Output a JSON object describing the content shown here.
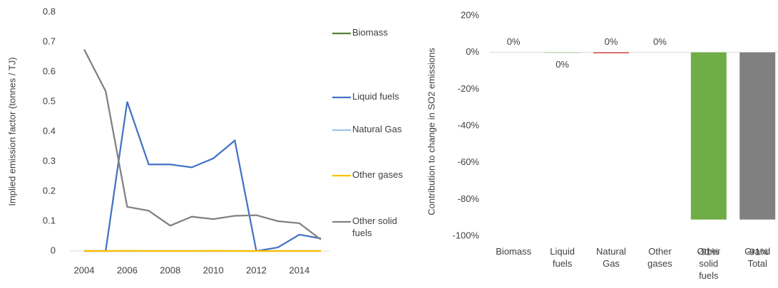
{
  "chart_data": [
    {
      "type": "line",
      "y_label": "Implied emission factor (tonnes / TJ)",
      "x": [
        2004,
        2005,
        2006,
        2007,
        2008,
        2009,
        2010,
        2011,
        2012,
        2013,
        2014,
        2015
      ],
      "xlim": [
        2004,
        2015
      ],
      "xticks": [
        2004,
        2006,
        2008,
        2010,
        2012,
        2014
      ],
      "ylim": [
        0,
        0.8
      ],
      "yticks": [
        0,
        0.1,
        0.2,
        0.3,
        0.4,
        0.5,
        0.6,
        0.7,
        0.8
      ],
      "grid": false,
      "legend": "right",
      "series": [
        {
          "name": "Biomass",
          "color": "#548235",
          "values": [
            0,
            0,
            0,
            0,
            0,
            0,
            0,
            0,
            0,
            0,
            0,
            0
          ]
        },
        {
          "name": "Liquid fuels",
          "color": "#4472c4",
          "values": [
            0,
            0,
            0.5,
            0.29,
            0.29,
            0.28,
            0.31,
            0.37,
            0,
            0.012,
            0.055,
            0.042
          ]
        },
        {
          "name": "Natural Gas",
          "color": "#9dc3e6",
          "values": [
            0,
            0,
            0,
            0,
            0,
            0,
            0,
            0,
            0,
            0,
            0,
            0
          ]
        },
        {
          "name": "Other gases",
          "color": "#ffc000",
          "values": [
            0,
            0,
            0.001,
            0,
            0,
            0,
            0.001,
            0,
            0,
            0,
            0,
            0
          ]
        },
        {
          "name": "Other solid fuels",
          "color": "#808080",
          "values": [
            0.675,
            0.535,
            0.148,
            0.135,
            0.085,
            0.115,
            0.107,
            0.118,
            0.12,
            0.1,
            0.093,
            0.038
          ]
        }
      ]
    },
    {
      "type": "bar",
      "y_label": "Contribution to change in SO2 emissions",
      "categories": [
        "Biomass",
        "Liquid fuels",
        "Natural Gas",
        "Other gases",
        "Other solid fuels",
        "Grand Total"
      ],
      "values": [
        0,
        -0.3,
        -0.4,
        0,
        -91,
        -91
      ],
      "value_labels": [
        "0%",
        "0%",
        "0%",
        "0%",
        "-91%",
        "-91%"
      ],
      "colors": [
        "#548235",
        "#a9d18e",
        "#c00000",
        "#ffc000",
        "#70ad47",
        "#808080"
      ],
      "ylim": [
        -100,
        20
      ],
      "yticks": [
        {
          "value": -100,
          "label": "-100%"
        },
        {
          "value": -80,
          "label": "-80%"
        },
        {
          "value": -60,
          "label": "-60%"
        },
        {
          "value": -40,
          "label": "-40%"
        },
        {
          "value": -20,
          "label": "-20%"
        },
        {
          "value": 0,
          "label": "0%"
        },
        {
          "value": 20,
          "label": "20%"
        }
      ]
    }
  ]
}
